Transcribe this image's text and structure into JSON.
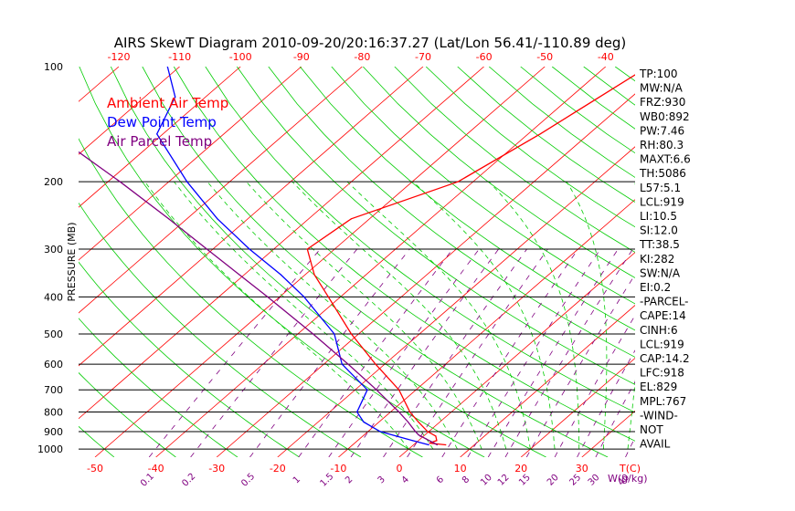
{
  "chart_data": {
    "type": "line",
    "title": "AIRS SkewT Diagram 2010-09-20/20:16:37.27 (Lat/Lon 56.41/-110.89 deg)",
    "ylabel": "PRESSURE (MB)",
    "xlabel": "T(C)",
    "mixing_ratio_unit": "W(g/kg)",
    "y_scale": "log",
    "ylim": [
      1050,
      100
    ],
    "pressure_ticks": [
      100,
      200,
      300,
      400,
      500,
      600,
      700,
      800,
      900,
      1000
    ],
    "bottom_temp_ticks": [
      -50,
      -40,
      -30,
      -20,
      -10,
      0,
      10,
      20,
      30
    ],
    "top_temp_ticks": [
      -120,
      -110,
      -100,
      -90,
      -80,
      -70,
      -60,
      -50,
      -40
    ],
    "mixing_ratio_labels": [
      "0.1",
      "0.2",
      "0.5",
      "1",
      "1.5",
      "2",
      "3",
      "4",
      "6",
      "8",
      "10",
      "12",
      "15",
      "20",
      "25",
      "30",
      "40"
    ],
    "legend": [
      {
        "label": "Ambient Air Temp",
        "color": "#ff0000"
      },
      {
        "label": "Dew Point Temp",
        "color": "#0000ff"
      },
      {
        "label": "Air Parcel Temp",
        "color": "#800080"
      }
    ],
    "series": [
      {
        "name": "Ambient Air Temp",
        "color": "#ff0000",
        "points": [
          [
            975,
            5.3
          ],
          [
            965,
            2.3
          ],
          [
            950,
            3.0
          ],
          [
            925,
            2.0
          ],
          [
            900,
            -0.2
          ],
          [
            850,
            -3.5
          ],
          [
            800,
            -6.8
          ],
          [
            700,
            -12.8
          ],
          [
            600,
            -21.5
          ],
          [
            500,
            -31.2
          ],
          [
            400,
            -42.0
          ],
          [
            350,
            -48.5
          ],
          [
            300,
            -54.5
          ],
          [
            250,
            -53.0
          ],
          [
            200,
            -42.5
          ],
          [
            150,
            -38.0
          ],
          [
            100,
            -33.0
          ]
        ]
      },
      {
        "name": "Dew Point Temp",
        "color": "#0000ff",
        "points": [
          [
            975,
            2.5
          ],
          [
            950,
            -1.0
          ],
          [
            925,
            -4.5
          ],
          [
            900,
            -8.0
          ],
          [
            850,
            -12.5
          ],
          [
            800,
            -15.5
          ],
          [
            700,
            -18.0
          ],
          [
            600,
            -27.0
          ],
          [
            500,
            -34.0
          ],
          [
            400,
            -46.0
          ],
          [
            350,
            -54.0
          ],
          [
            300,
            -64.0
          ],
          [
            250,
            -75.0
          ],
          [
            200,
            -87.0
          ],
          [
            150,
            -101.0
          ],
          [
            120,
            -105.0
          ],
          [
            100,
            -112.0
          ]
        ]
      },
      {
        "name": "Air Parcel Temp",
        "color": "#800080",
        "points": [
          [
            975,
            3.9
          ],
          [
            919,
            -1.0
          ],
          [
            900,
            -2.2
          ],
          [
            850,
            -5.2
          ],
          [
            800,
            -8.6
          ],
          [
            700,
            -16.5
          ],
          [
            600,
            -26.0
          ],
          [
            500,
            -37.5
          ],
          [
            400,
            -52.0
          ],
          [
            300,
            -71.0
          ],
          [
            250,
            -83.0
          ],
          [
            200,
            -98.0
          ],
          [
            150,
            -118.0
          ],
          [
            100,
            -145.0
          ]
        ]
      }
    ]
  },
  "indices": [
    "TP:100",
    "MW:N/A",
    "FRZ:930",
    "WB0:892",
    "PW:7.46",
    "RH:80.3",
    "MAXT:6.6",
    "TH:5086",
    "L57:5.1",
    "LCL:919",
    "LI:10.5",
    "SI:12.0",
    "TT:38.5",
    "KI:282",
    "SW:N/A",
    "EI:0.2",
    "-PARCEL-",
    "CAPE:14",
    "CINH:6",
    "LCL:919",
    "CAP:14.2",
    "LFC:918",
    "EL:829",
    "MPL:767",
    "-WIND-",
    "NOT",
    "AVAIL"
  ],
  "colors": {
    "isotherm": "#ff0000",
    "dry_adiabat": "#00cc00",
    "moist_adiabat": "#00cc00",
    "mixing_ratio": "#800080",
    "isobar": "#000000"
  }
}
